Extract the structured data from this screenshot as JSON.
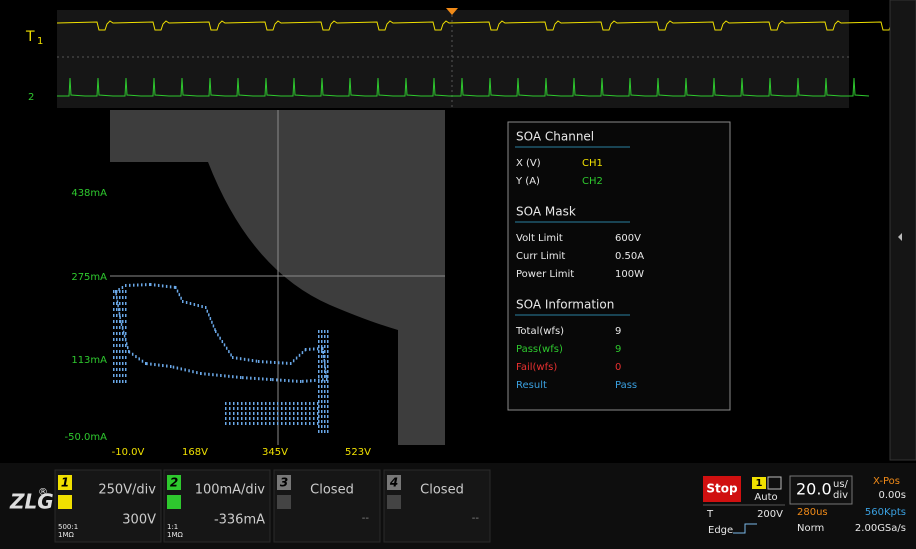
{
  "waveform": {
    "trigger_label": "T",
    "ch1_label": "1",
    "ch2_label": "2"
  },
  "xy_plot": {
    "y_labels": [
      "438mA",
      "275mA",
      "113mA",
      "-50.0mA"
    ],
    "x_labels": [
      "-10.0V",
      "168V",
      "345V",
      "523V"
    ]
  },
  "soa_panel": {
    "sections": [
      {
        "title": "SOA Channel",
        "rows": [
          [
            "X (V)",
            "CH1"
          ],
          [
            "Y (A)",
            "CH2"
          ]
        ]
      },
      {
        "title": "SOA Mask",
        "rows": [
          [
            "Volt Limit",
            "600V"
          ],
          [
            "Curr Limit",
            "0.50A"
          ],
          [
            "Power Limit",
            "100W"
          ]
        ]
      },
      {
        "title": "SOA Information",
        "rows": [
          [
            "Total(wfs)",
            "9"
          ],
          [
            "Pass(wfs)",
            "9"
          ],
          [
            "Fail(wfs)",
            "0"
          ],
          [
            "Result",
            "Pass"
          ]
        ]
      }
    ]
  },
  "logo": "ZLG",
  "logo_mark": "®",
  "channels": [
    {
      "number": "1",
      "scale": "250V/div",
      "offset": "300V",
      "probe": "500:1",
      "impedance": "1MΩ"
    },
    {
      "number": "2",
      "scale": "100mA/div",
      "offset": "-336mA",
      "probe": "1:1",
      "impedance": "1MΩ"
    },
    {
      "number": "3",
      "state": "Closed",
      "offset": "--"
    },
    {
      "number": "4",
      "state": "Closed",
      "offset": "--"
    }
  ],
  "status": {
    "run_state": "Stop",
    "trigger_source": "1",
    "trigger_mode": "Auto",
    "trigger_label": "T",
    "trigger_level": "200V",
    "trigger_type": "Edge",
    "timebase": "20.0",
    "timebase_unit_top": "us/",
    "timebase_unit_bottom": "div",
    "xpos_label": "X-Pos",
    "xpos_value": "0.00s",
    "record_time": "280us",
    "record_length": "560Kpts",
    "acq_mode": "Norm",
    "sample_rate": "2.00GSa/s"
  }
}
